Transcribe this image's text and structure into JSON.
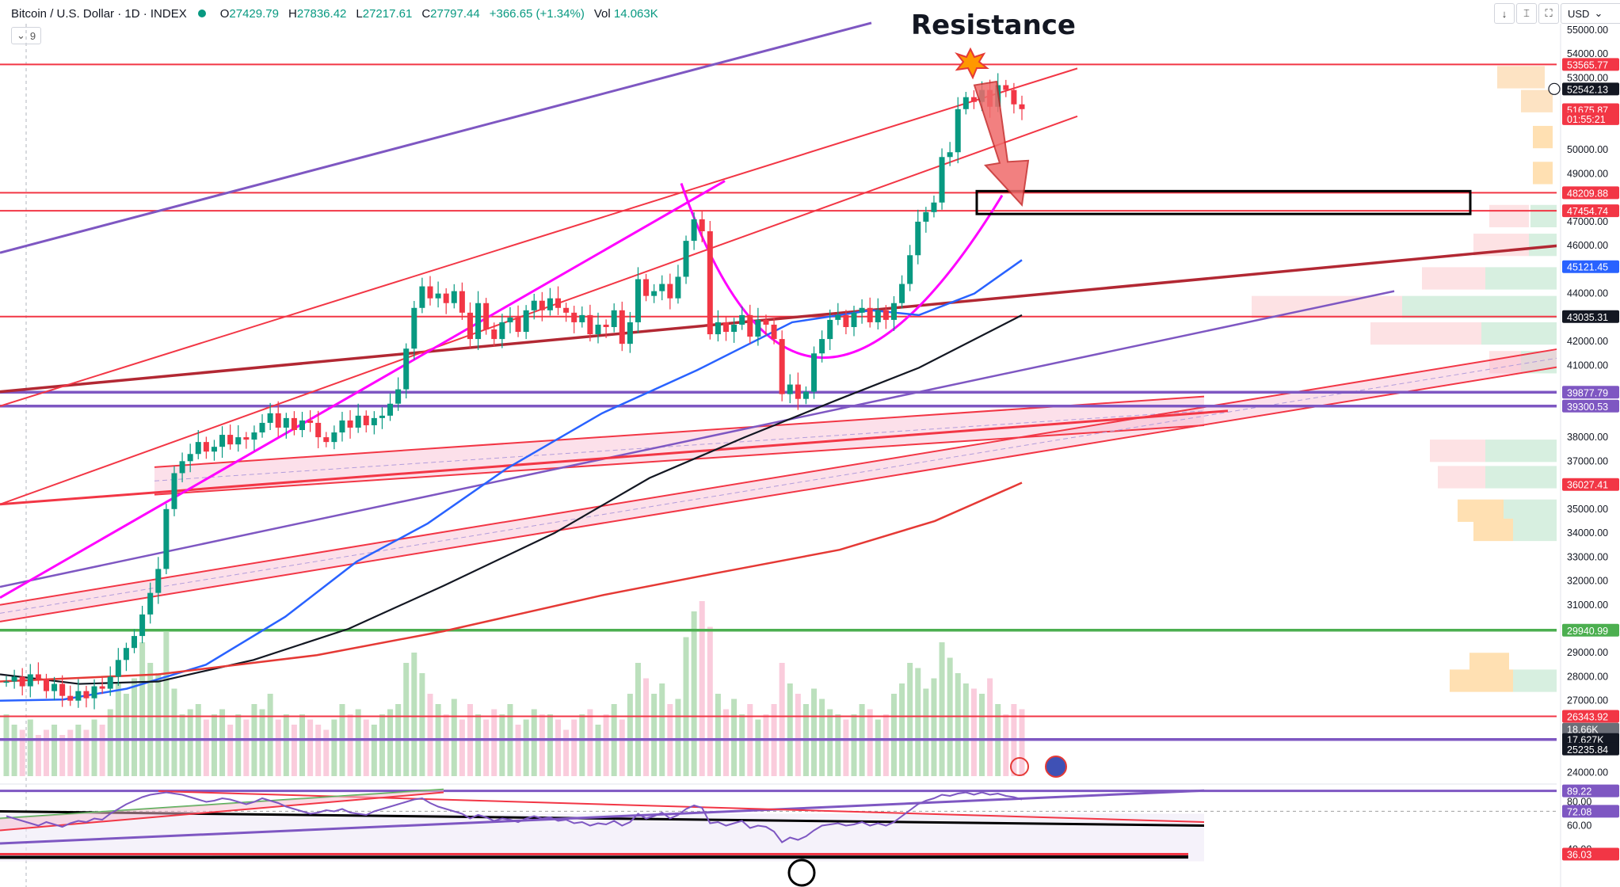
{
  "header": {
    "symbol": "Bitcoin / U.S. Dollar · 1D · INDEX",
    "o_label": "O",
    "o": "27429.79",
    "h_label": "H",
    "h": "27836.42",
    "l_label": "L",
    "l": "27217.61",
    "c_label": "C",
    "c": "27797.44",
    "change": "+366.65 (+1.34%)",
    "vol_label": "Vol",
    "vol": "14.063K",
    "indicator_count": "9",
    "currency": "USD"
  },
  "annotation": {
    "resistance": "Resistance"
  },
  "icons": [
    "chevron-down-icon",
    "text-select-icon",
    "snapshot-icon",
    "fullscreen-icon",
    "alert-icon",
    "flag-icon",
    "plus-icon"
  ],
  "colors": {
    "up": "#089981",
    "down": "#f23645",
    "red_line": "#f23645",
    "purple": "#7e57c2",
    "magenta": "#ff00ff",
    "green_line": "#4caf50",
    "blue_ma": "#2962ff",
    "black_ma": "#131722",
    "darkred": "#b22833",
    "pink_band": "#f8bbd0"
  },
  "chart_data": {
    "type": "candlestick",
    "title": "Bitcoin / U.S. Dollar · 1D · INDEX",
    "ylim": [
      23600,
      55700
    ],
    "y_ticks": [
      24000,
      27000,
      28000,
      29000,
      31000,
      32000,
      33000,
      34000,
      35000,
      37000,
      38000,
      41000,
      42000,
      44000,
      46000,
      47000,
      49000,
      50000,
      53000,
      54000,
      55000
    ],
    "price_tags": [
      {
        "value": 53565.77,
        "label": "53565.77",
        "color": "#f23645"
      },
      {
        "value": 52542.13,
        "label": "52542.13",
        "color": "#131722"
      },
      {
        "value": 51675.87,
        "label": "51675.87",
        "color": "#f23645"
      },
      {
        "value": 51300,
        "label": "01:55:21",
        "color": "#f23645"
      },
      {
        "value": 48209.88,
        "label": "48209.88",
        "color": "#f23645"
      },
      {
        "value": 47454.74,
        "label": "47454.74",
        "color": "#f23645"
      },
      {
        "value": 45121.45,
        "label": "45121.45",
        "color": "#2962ff"
      },
      {
        "value": 43035.31,
        "label": "43035.31",
        "color": "#131722"
      },
      {
        "value": 39877.79,
        "label": "39877.79",
        "color": "#7e57c2"
      },
      {
        "value": 39300.53,
        "label": "39300.53",
        "color": "#7e57c2"
      },
      {
        "value": 36027.41,
        "label": "36027.41",
        "color": "#f23645"
      },
      {
        "value": 29940.99,
        "label": "29940.99",
        "color": "#4caf50"
      },
      {
        "value": 26343.92,
        "label": "26343.92",
        "color": "#f23645"
      },
      {
        "value": 25810,
        "label": "18.66K",
        "color": "#6b6e77"
      },
      {
        "value": 25380,
        "label": "17.627K",
        "color": "#131722"
      },
      {
        "value": 24980,
        "label": "25235.84",
        "color": "#131722"
      }
    ],
    "horizontal_levels": [
      {
        "value": 53565.77,
        "color": "#f23645"
      },
      {
        "value": 48209.88,
        "color": "#f23645"
      },
      {
        "value": 47454.74,
        "color": "#f23645"
      },
      {
        "value": 43035.31,
        "color": "#f23645"
      },
      {
        "value": 39877.79,
        "color": "#7e57c2"
      },
      {
        "value": 39300.53,
        "color": "#7e57c2"
      },
      {
        "value": 29940.99,
        "color": "#4caf50"
      },
      {
        "value": 26343.92,
        "color": "#f23645"
      },
      {
        "value": 25380,
        "color": "#7e57c2"
      }
    ],
    "candles_close": [
      27800,
      28000,
      27600,
      28100,
      27900,
      27400,
      27700,
      27200,
      27000,
      27400,
      27100,
      27600,
      27500,
      28000,
      28700,
      29200,
      29700,
      30600,
      31500,
      32500,
      35000,
      36500,
      37000,
      37300,
      37800,
      37400,
      37600,
      38100,
      37700,
      38000,
      37900,
      38200,
      38600,
      39000,
      38400,
      38800,
      38300,
      38700,
      38600,
      38000,
      37800,
      38200,
      38700,
      38400,
      38900,
      38500,
      38800,
      38900,
      39400,
      40000,
      41700,
      43400,
      44300,
      43800,
      44000,
      43600,
      44100,
      43200,
      42100,
      43600,
      42500,
      42100,
      42800,
      43000,
      42400,
      43300,
      43700,
      43300,
      43800,
      43400,
      43200,
      42800,
      43100,
      42300,
      42700,
      42600,
      43300,
      41900,
      42800,
      44600,
      43900,
      44100,
      44400,
      43800,
      44700,
      46200,
      47100,
      46600,
      42300,
      42800,
      42400,
      42700,
      43100,
      42200,
      42900,
      42700,
      42100,
      39800,
      40200,
      39600,
      39900,
      41500,
      42100,
      42900,
      43100,
      42600,
      43200,
      43400,
      42800,
      43300,
      42900,
      43600,
      44400,
      45600,
      47000,
      47400,
      47800,
      49700,
      49900,
      51700,
      52200,
      52000,
      52500,
      51800,
      52700,
      52500,
      51900,
      51700
    ],
    "volume_bars": [
      12,
      10,
      9,
      11,
      8,
      9,
      10,
      8,
      9,
      10,
      9,
      11,
      10,
      13,
      18,
      16,
      19,
      26,
      22,
      20,
      28,
      17,
      12,
      13,
      14,
      11,
      12,
      13,
      10,
      12,
      11,
      14,
      13,
      16,
      11,
      12,
      10,
      12,
      11,
      10,
      9,
      11,
      14,
      12,
      13,
      11,
      10,
      12,
      13,
      14,
      22,
      24,
      20,
      16,
      14,
      12,
      15,
      11,
      14,
      12,
      11,
      13,
      12,
      14,
      10,
      11,
      13,
      12,
      12,
      11,
      9,
      11,
      12,
      13,
      10,
      12,
      14,
      11,
      16,
      22,
      19,
      16,
      18,
      14,
      15,
      27,
      32,
      34,
      29,
      16,
      13,
      15,
      12,
      14,
      11,
      12,
      14,
      22,
      18,
      16,
      14,
      17,
      15,
      13,
      12,
      11,
      12,
      14,
      13,
      11,
      12,
      16,
      18,
      22,
      21,
      17,
      19,
      26,
      23,
      20,
      18,
      17,
      16,
      19,
      14,
      12,
      14,
      13
    ],
    "rsi_ylim": [
      33,
      95
    ],
    "rsi_ticks": [
      40,
      60,
      80
    ],
    "rsi_tags": [
      {
        "value": 89.22,
        "label": "89.22",
        "color": "#7e57c2"
      },
      {
        "value": 72.08,
        "label": "72.08",
        "color": "#7e57c2"
      },
      {
        "value": 36.03,
        "label": "36.03",
        "color": "#f23645"
      }
    ],
    "rsi_values": [
      68,
      66,
      64,
      62,
      60,
      63,
      61,
      59,
      62,
      64,
      63,
      66,
      65,
      70,
      74,
      78,
      81,
      84,
      86,
      87,
      88,
      87,
      86,
      84,
      82,
      80,
      81,
      83,
      82,
      80,
      78,
      80,
      83,
      81,
      79,
      76,
      74,
      72,
      70,
      71,
      73,
      72,
      74,
      71,
      70,
      69,
      72,
      74,
      76,
      78,
      80,
      82,
      83,
      79,
      76,
      74,
      72,
      70,
      66,
      69,
      67,
      64,
      66,
      65,
      63,
      66,
      68,
      66,
      67,
      64,
      65,
      62,
      63,
      60,
      62,
      61,
      64,
      60,
      63,
      70,
      66,
      68,
      71,
      66,
      69,
      74,
      77,
      75,
      62,
      63,
      60,
      62,
      64,
      58,
      60,
      59,
      55,
      46,
      50,
      48,
      51,
      56,
      60,
      61,
      62,
      60,
      61,
      63,
      60,
      62,
      60,
      63,
      68,
      73,
      78,
      81,
      83,
      86,
      85,
      87,
      88,
      86,
      88,
      86,
      87,
      85,
      84,
      82
    ]
  }
}
